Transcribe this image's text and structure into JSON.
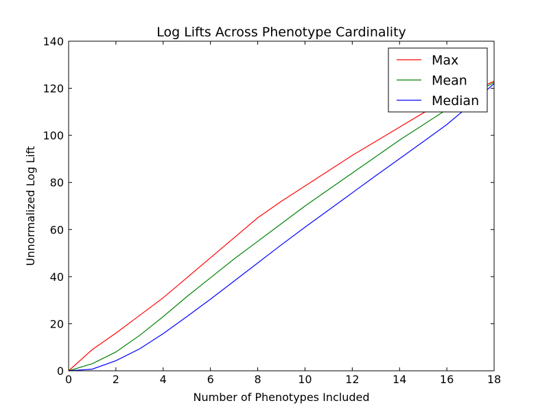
{
  "chart_data": {
    "type": "line",
    "title": "Log Lifts Across Phenotype Cardinality",
    "xlabel": "Number of Phenotypes Included",
    "ylabel": "Unnormalized Log Lift",
    "xlim": [
      0,
      18
    ],
    "ylim": [
      0,
      140
    ],
    "xticks": [
      0,
      2,
      4,
      6,
      8,
      10,
      12,
      14,
      16,
      18
    ],
    "yticks": [
      0,
      20,
      40,
      60,
      80,
      100,
      120,
      140
    ],
    "xtick_labels": [
      "0",
      "2",
      "4",
      "6",
      "8",
      "10",
      "12",
      "14",
      "16",
      "18"
    ],
    "ytick_labels": [
      "0",
      "20",
      "40",
      "60",
      "80",
      "100",
      "120",
      "140"
    ],
    "grid": false,
    "legend_position": "top-right",
    "x": [
      0,
      1,
      2,
      3,
      4,
      5,
      6,
      7,
      8,
      9,
      10,
      11,
      12,
      13,
      14,
      15,
      16,
      17,
      18
    ],
    "series": [
      {
        "name": "Max",
        "color": "#ff0000",
        "values": [
          0,
          9,
          16,
          23.5,
          31,
          39.5,
          48,
          56.5,
          65,
          72,
          78.5,
          85,
          91.5,
          97.5,
          103.5,
          109.5,
          115,
          118.5,
          123
        ]
      },
      {
        "name": "Mean",
        "color": "#008000",
        "values": [
          0,
          3,
          8,
          15,
          23,
          31.5,
          39.5,
          47.5,
          55,
          62.5,
          70,
          77,
          84,
          91,
          98,
          104.5,
          111,
          117,
          122.5
        ]
      },
      {
        "name": "Median",
        "color": "#0000ff",
        "values": [
          0,
          0.7,
          4.3,
          9.3,
          15.8,
          23,
          30.4,
          38.1,
          45.8,
          53.5,
          61,
          68.3,
          75.6,
          82.9,
          90.1,
          97.3,
          104.6,
          113,
          122
        ]
      }
    ]
  }
}
